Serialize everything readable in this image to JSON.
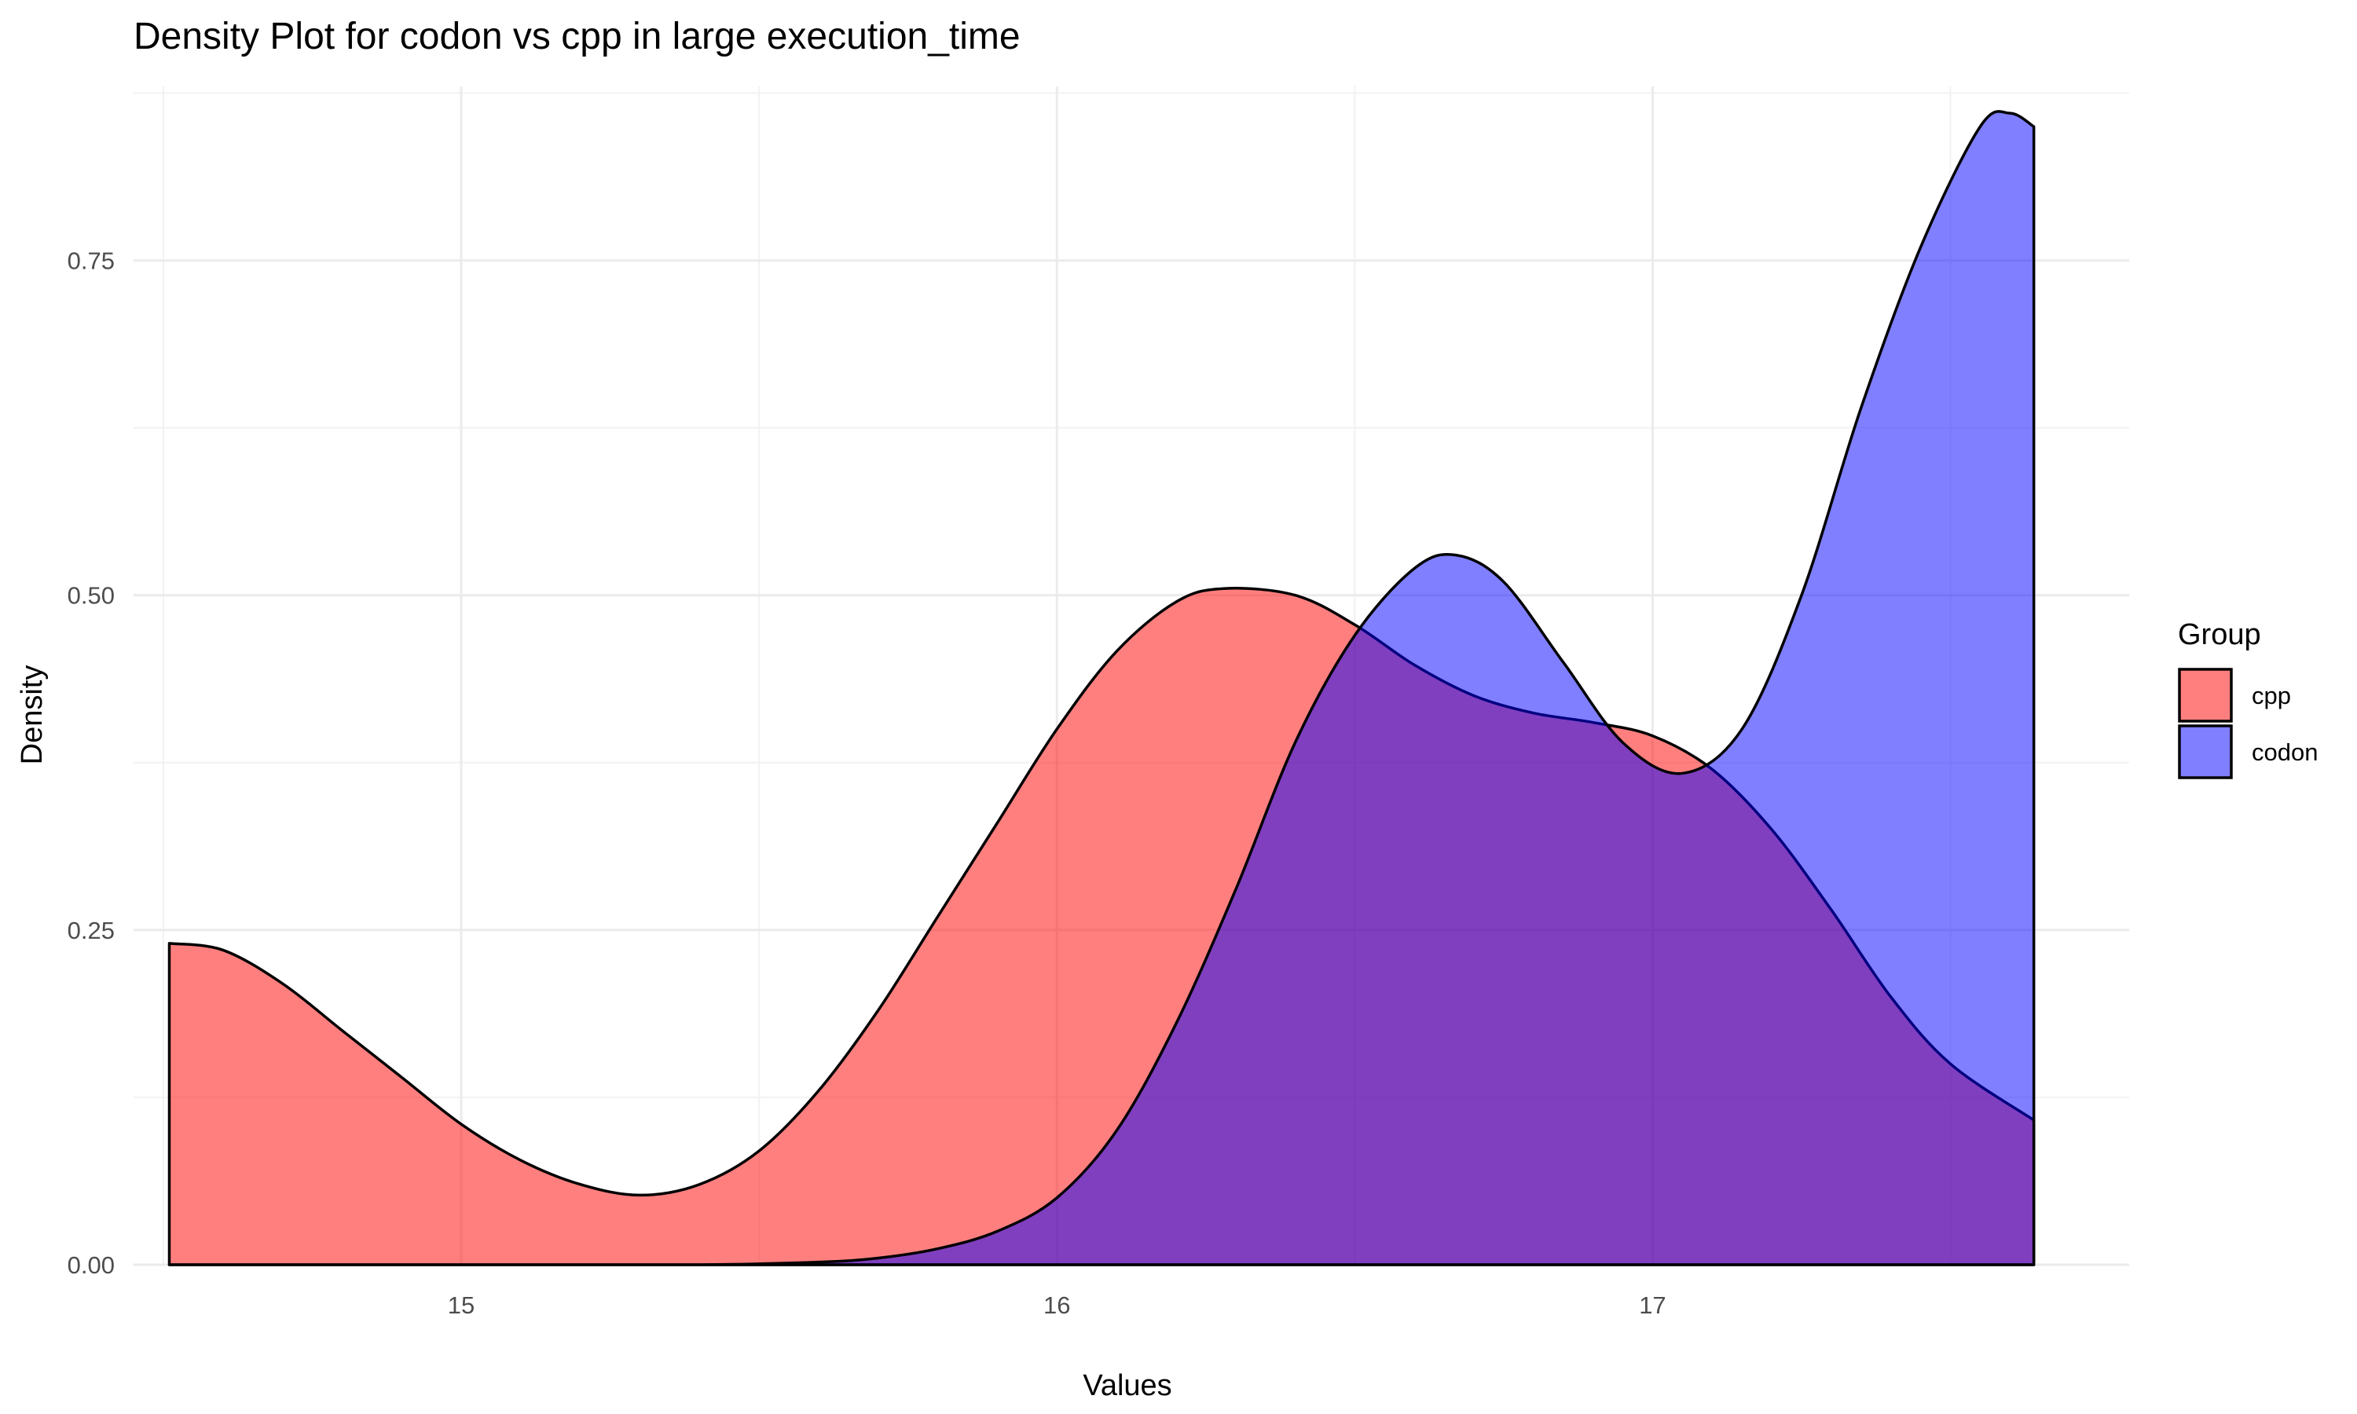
{
  "chart_data": {
    "type": "area",
    "title": "Density Plot for codon vs cpp in large execution_time",
    "xlabel": "Values",
    "ylabel": "Density",
    "xlim": [
      14.45,
      17.8
    ],
    "ylim": [
      0,
      0.88
    ],
    "x_ticks": [
      {
        "value": 15,
        "label": "15"
      },
      {
        "value": 16,
        "label": "16"
      },
      {
        "value": 17,
        "label": "17"
      }
    ],
    "y_ticks": [
      {
        "value": 0,
        "label": "0.00"
      },
      {
        "value": 0.25,
        "label": "0.25"
      },
      {
        "value": 0.5,
        "label": "0.50"
      },
      {
        "value": 0.75,
        "label": "0.75"
      }
    ],
    "x_minor": [
      14.5,
      15.5,
      16.5,
      17.5
    ],
    "y_minor": [
      0.125,
      0.375,
      0.625,
      0.875
    ],
    "grid": true,
    "legend": {
      "title": "Group",
      "position": "right",
      "entries": [
        {
          "label": "cpp",
          "color": "#ff0000"
        },
        {
          "label": "codon",
          "color": "#0000ff"
        }
      ]
    },
    "series": [
      {
        "name": "cpp",
        "color": "#ff0000",
        "fill_opacity": 0.5,
        "x": [
          14.51,
          14.6,
          14.7,
          14.8,
          14.9,
          15.0,
          15.1,
          15.2,
          15.3,
          15.4,
          15.5,
          15.6,
          15.7,
          15.8,
          15.9,
          16.0,
          16.1,
          16.2,
          16.28,
          16.4,
          16.5,
          16.6,
          16.7,
          16.8,
          16.9,
          17.0,
          17.1,
          17.2,
          17.3,
          17.4,
          17.5,
          17.64
        ],
        "y": [
          0.24,
          0.235,
          0.21,
          0.175,
          0.14,
          0.105,
          0.078,
          0.06,
          0.052,
          0.06,
          0.085,
          0.13,
          0.19,
          0.26,
          0.33,
          0.4,
          0.458,
          0.495,
          0.505,
          0.5,
          0.478,
          0.448,
          0.425,
          0.412,
          0.405,
          0.395,
          0.37,
          0.325,
          0.265,
          0.2,
          0.15,
          0.108
        ]
      },
      {
        "name": "codon",
        "color": "#0000ff",
        "fill_opacity": 0.5,
        "x": [
          14.51,
          15.0,
          15.4,
          15.6,
          15.7,
          15.8,
          15.9,
          16.0,
          16.1,
          16.2,
          16.3,
          16.4,
          16.5,
          16.6,
          16.67,
          16.75,
          16.85,
          16.95,
          17.05,
          17.15,
          17.25,
          17.35,
          17.45,
          17.55,
          17.6,
          17.64
        ],
        "y": [
          0,
          0,
          0,
          0.002,
          0.005,
          0.012,
          0.025,
          0.05,
          0.1,
          0.18,
          0.28,
          0.39,
          0.47,
          0.52,
          0.53,
          0.51,
          0.45,
          0.39,
          0.367,
          0.4,
          0.5,
          0.64,
          0.76,
          0.85,
          0.86,
          0.85
        ]
      }
    ]
  }
}
